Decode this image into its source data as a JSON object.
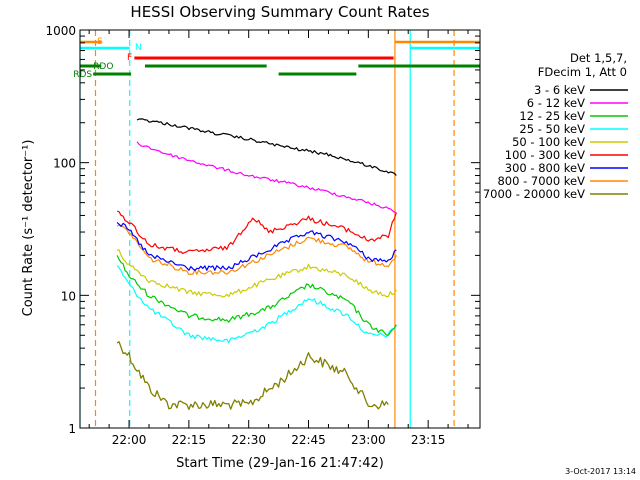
{
  "chart_data": {
    "type": "line",
    "title": "HESSI Observing Summary Count Rates",
    "xlabel": "Start Time (29-Jan-16 21:47:42)",
    "ylabel": "Count Rate (s⁻¹ detector⁻¹)",
    "y_scale": "log",
    "ylim": [
      1,
      1000
    ],
    "xlim": [
      "21:47:42",
      "23:28:00"
    ],
    "x_unit": "time (UT)",
    "x_tick_labels": [
      "22:00",
      "22:15",
      "22:30",
      "22:45",
      "23:00",
      "23:15"
    ],
    "y_tick_labels": [
      "1",
      "10",
      "100",
      "1000"
    ],
    "grid": false,
    "legend_position": "right",
    "legend_header": [
      "Det 1,5,7,",
      "FDecim 1, Att 0"
    ],
    "series": [
      {
        "name": "3 - 6 keV",
        "color": "#000000",
        "x": [
          "22:02",
          "22:10",
          "22:20",
          "22:30",
          "22:40",
          "22:50",
          "23:00",
          "23:05",
          "23:07"
        ],
        "values": [
          215,
          195,
          170,
          150,
          130,
          115,
          95,
          85,
          80
        ]
      },
      {
        "name": "6 - 12 keV",
        "color": "#ff00ff",
        "x": [
          "22:02",
          "22:10",
          "22:20",
          "22:30",
          "22:40",
          "22:50",
          "23:00",
          "23:05",
          "23:07"
        ],
        "values": [
          140,
          115,
          95,
          80,
          70,
          60,
          50,
          45,
          42
        ]
      },
      {
        "name": "12 - 25 keV",
        "color": "#00cc00",
        "x": [
          "21:57",
          "22:00",
          "22:05",
          "22:15",
          "22:25",
          "22:35",
          "22:45",
          "22:55",
          "23:00",
          "23:05",
          "23:07"
        ],
        "values": [
          20,
          14,
          10,
          7,
          6.5,
          8,
          12,
          9,
          6,
          5,
          6
        ]
      },
      {
        "name": "25 - 50 keV",
        "color": "#00ffff",
        "x": [
          "21:57",
          "22:00",
          "22:05",
          "22:15",
          "22:25",
          "22:35",
          "22:45",
          "22:55",
          "23:00",
          "23:05",
          "23:07"
        ],
        "values": [
          17,
          12,
          8,
          5,
          4.5,
          6,
          9.5,
          7,
          5,
          5,
          6
        ]
      },
      {
        "name": "50 - 100 keV",
        "color": "#cccc00",
        "x": [
          "21:57",
          "22:00",
          "22:05",
          "22:15",
          "22:25",
          "22:35",
          "22:45",
          "22:55",
          "23:00",
          "23:05",
          "23:07"
        ],
        "values": [
          22,
          17,
          13,
          10.5,
          10,
          13,
          16.5,
          14,
          11,
          10,
          11
        ]
      },
      {
        "name": "100 - 300 keV",
        "color": "#ff0000",
        "x": [
          "21:57",
          "22:00",
          "22:05",
          "22:15",
          "22:25",
          "22:31",
          "22:35",
          "22:45",
          "22:55",
          "23:00",
          "23:05",
          "23:07"
        ],
        "values": [
          42,
          36,
          24,
          21,
          23,
          39,
          30,
          38,
          31,
          26,
          28,
          42
        ]
      },
      {
        "name": "300 - 800 keV",
        "color": "#0000ff",
        "x": [
          "21:57",
          "22:00",
          "22:05",
          "22:15",
          "22:25",
          "22:35",
          "22:45",
          "22:55",
          "23:00",
          "23:05",
          "23:07"
        ],
        "values": [
          36,
          31,
          20,
          16,
          16,
          22,
          30,
          25,
          19,
          18,
          22
        ]
      },
      {
        "name": "800 - 7000 keV",
        "color": "#ff8800",
        "x": [
          "21:57",
          "22:00",
          "22:05",
          "22:15",
          "22:25",
          "22:35",
          "22:45",
          "22:55",
          "23:00",
          "23:05",
          "23:07"
        ],
        "values": [
          34,
          30,
          19,
          15,
          15,
          20,
          27,
          23,
          18,
          17,
          20
        ]
      },
      {
        "name": "7000 - 20000 keV",
        "color": "#808000",
        "x": [
          "21:57",
          "22:00",
          "22:05",
          "22:10",
          "22:20",
          "22:30",
          "22:40",
          "22:45",
          "22:55",
          "23:00",
          "23:05"
        ],
        "values": [
          4.5,
          3.5,
          2,
          1.5,
          1.5,
          1.5,
          2.5,
          3.5,
          2.5,
          1.5,
          1.5
        ]
      }
    ],
    "annotations": [
      {
        "label": "S",
        "color": "#ff8800"
      },
      {
        "label": "N",
        "color": "#00ffff"
      },
      {
        "label": "F",
        "color": "#ff0000"
      },
      {
        "label": "RDO",
        "color": "#008000"
      },
      {
        "label": "RDS",
        "color": "#008000"
      }
    ],
    "timestamp": "3-Oct-2017 13:14"
  }
}
